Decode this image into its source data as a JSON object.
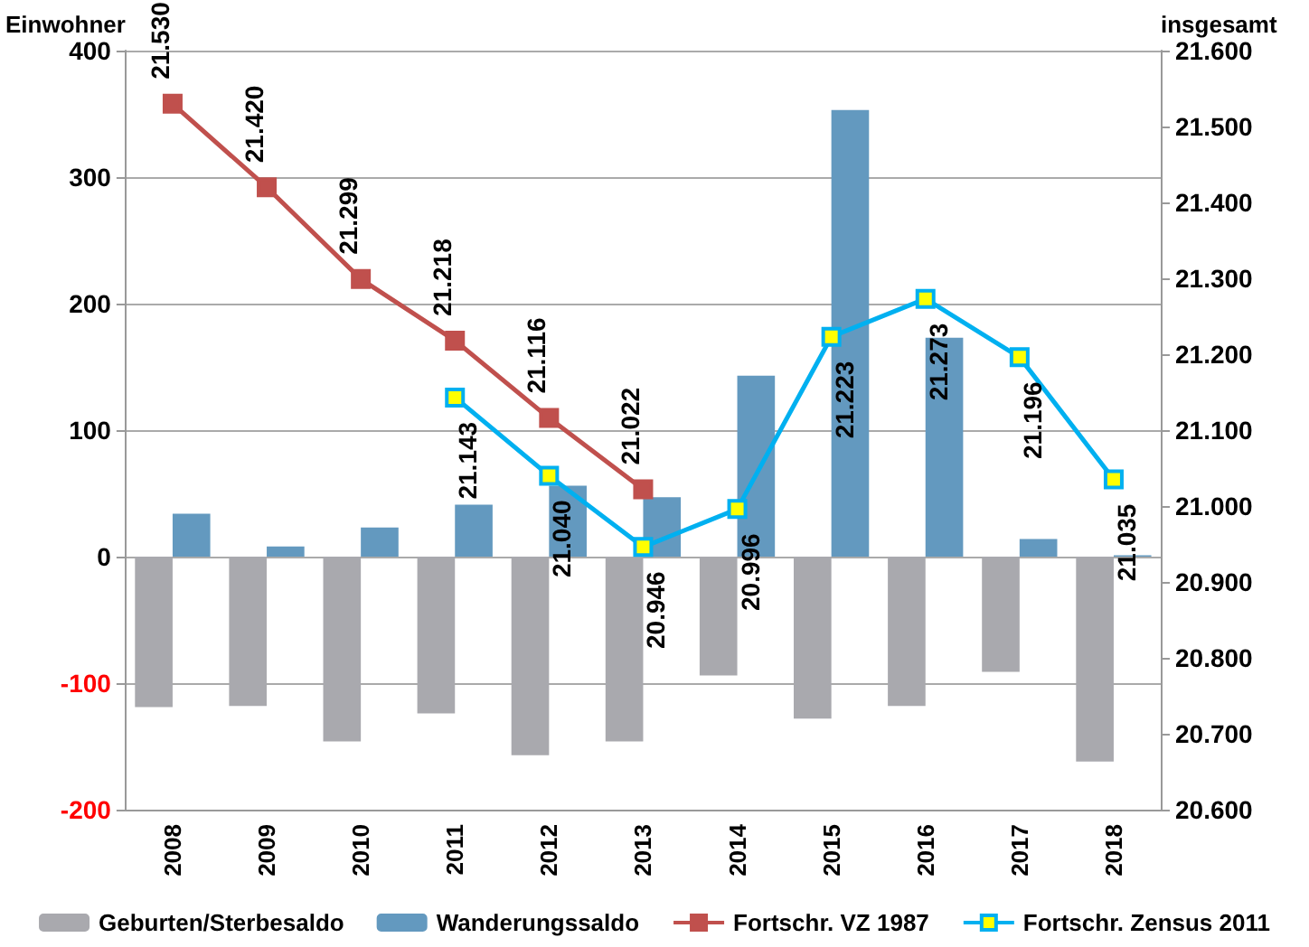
{
  "chart_data": {
    "type": "bar",
    "ylabel": "Einwohner",
    "y2label": "insgesamt",
    "categories": [
      "2008",
      "2009",
      "2010",
      "2011",
      "2012",
      "2013",
      "2014",
      "2015",
      "2016",
      "2017",
      "2018"
    ],
    "series": [
      {
        "name": "Geburten/Sterbesaldo",
        "color": "#a9a9ae",
        "values": [
          -119,
          -118,
          -146,
          -124,
          -157,
          -146,
          -94,
          -128,
          -118,
          -91,
          -162
        ]
      },
      {
        "name": "Wanderungssaldo",
        "color": "#6399bf",
        "values": [
          34,
          8,
          23,
          41,
          56,
          47,
          143,
          353,
          173,
          14,
          1
        ]
      },
      {
        "name": "Fortschr. VZ 1987",
        "type": "line",
        "axis": "y2",
        "color": "#c0504d",
        "marker": "square",
        "values": [
          21530,
          21420,
          21299,
          21218,
          21116,
          21022,
          null,
          null,
          null,
          null,
          null
        ],
        "value_labels": [
          "21.530",
          "21.420",
          "21.299",
          "21.218",
          "21.116",
          "21.022",
          null,
          null,
          null,
          null,
          null
        ]
      },
      {
        "name": "Fortschr. Zensus 2011",
        "type": "line",
        "axis": "y2",
        "color": "#00b0f0",
        "marker": "square",
        "values": [
          null,
          null,
          null,
          21143,
          21040,
          20946,
          20996,
          21223,
          21273,
          21196,
          21035
        ],
        "value_labels": [
          null,
          null,
          null,
          "21.143",
          "21.040",
          "20.946",
          "20.996",
          "21.223",
          "21.273",
          "21.196",
          "21.035"
        ]
      }
    ],
    "ylim": [
      -200,
      400
    ],
    "yticks": [
      -200,
      -100,
      0,
      100,
      200,
      300,
      400
    ],
    "y2lim": [
      20600,
      21600
    ],
    "y2ticks": [
      {
        "value": 20600,
        "label": "20.600"
      },
      {
        "value": 20700,
        "label": "20.700"
      },
      {
        "value": 20800,
        "label": "20.800"
      },
      {
        "value": 20900,
        "label": "20.900"
      },
      {
        "value": 21000,
        "label": "21.000"
      },
      {
        "value": 21100,
        "label": "21.100"
      },
      {
        "value": 21200,
        "label": "21.200"
      },
      {
        "value": 21300,
        "label": "21.300"
      },
      {
        "value": 21400,
        "label": "21.400"
      },
      {
        "value": 21500,
        "label": "21.500"
      },
      {
        "value": 21600,
        "label": "21.600"
      }
    ],
    "grid": "y",
    "legend": "bottom"
  }
}
